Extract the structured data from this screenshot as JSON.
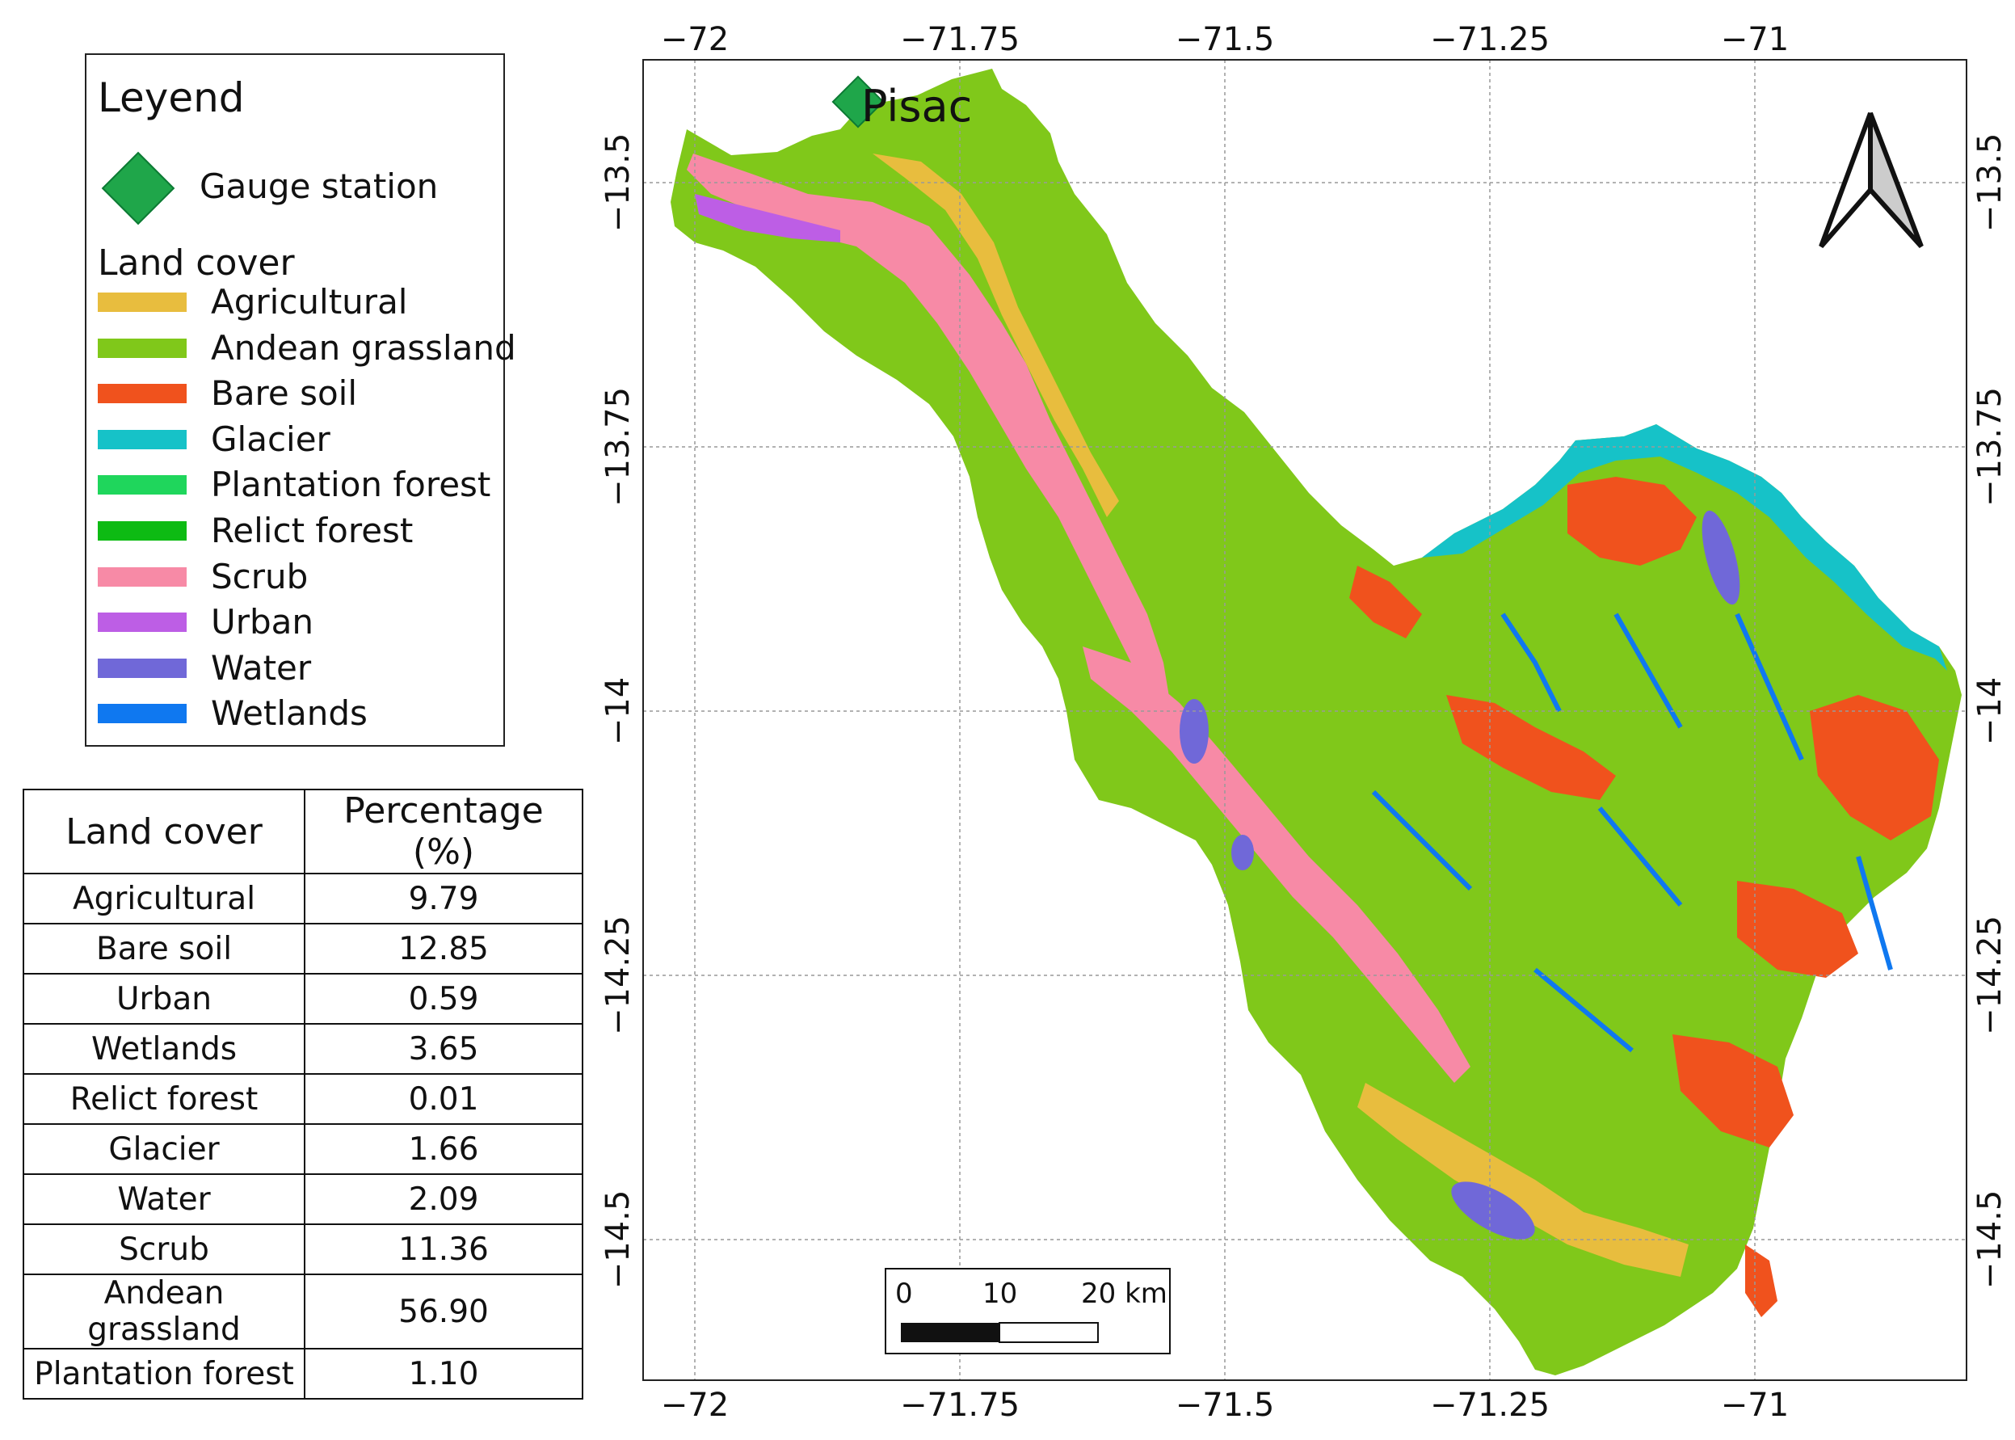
{
  "legend": {
    "title": "Leyend",
    "gauge_label": "Gauge station",
    "land_cover_heading": "Land cover",
    "items": [
      {
        "label": "Agricultural",
        "color": "#e8bd3e"
      },
      {
        "label": "Andean grassland",
        "color": "#80c81a"
      },
      {
        "label": "Bare soil",
        "color": "#f0521d"
      },
      {
        "label": "Glacier",
        "color": "#16c2c8"
      },
      {
        "label": "Plantation forest",
        "color": "#1fd65c"
      },
      {
        "label": "Relict forest",
        "color": "#0dbb13"
      },
      {
        "label": "Scrub",
        "color": "#f78aa6"
      },
      {
        "label": "Urban",
        "color": "#bd5ee5"
      },
      {
        "label": "Water",
        "color": "#7068d8"
      },
      {
        "label": "Wetlands",
        "color": "#0f78f0"
      }
    ]
  },
  "table": {
    "headers": [
      "Land cover",
      "Percentage (%)"
    ],
    "rows": [
      [
        "Agricultural",
        "9.79"
      ],
      [
        "Bare soil",
        "12.85"
      ],
      [
        "Urban",
        "0.59"
      ],
      [
        "Wetlands",
        "3.65"
      ],
      [
        "Relict forest",
        "0.01"
      ],
      [
        "Glacier",
        "1.66"
      ],
      [
        "Water",
        "2.09"
      ],
      [
        "Scrub",
        "11.36"
      ],
      [
        "Andean grassland",
        "56.90"
      ],
      [
        "Plantation forest",
        "1.10"
      ]
    ]
  },
  "map": {
    "station_label": "Pisac",
    "lon_ticks": [
      "−72",
      "−71.75",
      "−71.5",
      "−71.25",
      "−71"
    ],
    "lat_ticks": [
      "−13.5",
      "−13.75",
      "−14",
      "−14.25",
      "−14.5"
    ],
    "scale_bar": {
      "labels": [
        "0",
        "10",
        "20 km"
      ]
    },
    "north_arrow": "north-arrow"
  }
}
